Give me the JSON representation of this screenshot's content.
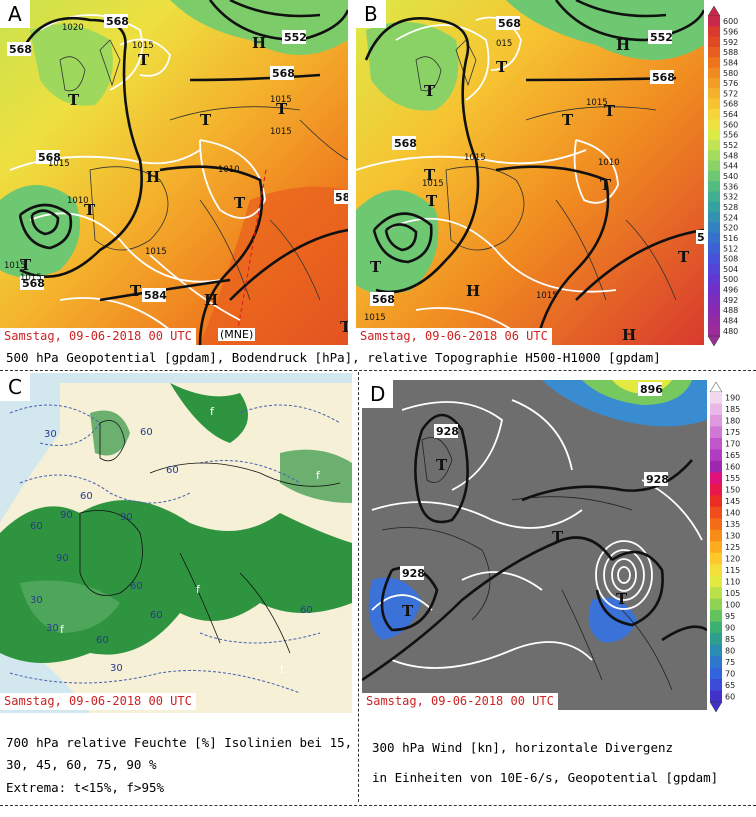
{
  "panels": {
    "A": {
      "letter": "A",
      "timestamp": "Samstag, 09-06-2018   00 UTC",
      "label_mne": "(MNE)",
      "geopotential_labels": [
        "568",
        "568",
        "552",
        "568",
        "568",
        "568",
        "584",
        "58"
      ],
      "pressure_labels": [
        "1020",
        "1015",
        "1015",
        "1015",
        "1010",
        "1015",
        "1010",
        "1015",
        "1015",
        "1015"
      ],
      "systems": [
        "T",
        "T",
        "T",
        "T",
        "T",
        "T",
        "H",
        "H",
        "H",
        "T",
        "T",
        "T"
      ]
    },
    "B": {
      "letter": "B",
      "timestamp": "Samstag, 09-06-2018   06 UTC",
      "geopotential_labels": [
        "568",
        "552",
        "568",
        "568",
        "568",
        "5"
      ],
      "pressure_labels": [
        "015",
        "1015",
        "1015",
        "1015",
        "1010",
        "1015",
        "1015"
      ],
      "systems": [
        "T",
        "H",
        "T",
        "T",
        "T",
        "T",
        "T",
        "T",
        "T",
        "H",
        "T",
        "H"
      ]
    },
    "C": {
      "letter": "C",
      "timestamp": "Samstag, 09-06-2018   00 UTC",
      "humidity_labels": [
        "30",
        "60",
        "60",
        "60",
        "90",
        "90",
        "60",
        "90",
        "60",
        "30",
        "60",
        "30",
        "60",
        "30",
        "60"
      ],
      "extrema_labels": [
        "f",
        "f",
        "f",
        "f",
        "t"
      ]
    },
    "D": {
      "letter": "D",
      "timestamp": "Samstag, 09-06-2018   00 UTC",
      "geopotential_labels": [
        "896",
        "928",
        "928",
        "928"
      ],
      "systems": [
        "T",
        "T",
        "T",
        "T"
      ]
    }
  },
  "captions": {
    "top": "500 hPa Geopotential [gpdam], Bodendruck [hPa], relative Topographie H500-H1000 [gpdam]",
    "c_line1": "700 hPa relative Feuchte [%] Isolinien bei 15,",
    "c_line2": "30, 45, 60, 75, 90 %",
    "c_line3": "Extrema: t<15%, f>95%",
    "d_line1": "300 hPa Wind [kn], horizontale Divergenz",
    "d_line2": "in Einheiten von 10E-6/s, Geopotential [gpdam]"
  },
  "colorbar_top": {
    "labels": [
      "600",
      "596",
      "592",
      "588",
      "584",
      "580",
      "576",
      "572",
      "568",
      "564",
      "560",
      "556",
      "552",
      "548",
      "544",
      "540",
      "536",
      "532",
      "528",
      "524",
      "520",
      "516",
      "512",
      "508",
      "504",
      "500",
      "496",
      "492",
      "488",
      "484",
      "480"
    ],
    "colors": [
      "#c8284a",
      "#d83a2e",
      "#e04a22",
      "#e85e1e",
      "#ee741c",
      "#f08a20",
      "#f29e26",
      "#f4b22c",
      "#f6c432",
      "#f6d43a",
      "#eee040",
      "#dcea48",
      "#c2e454",
      "#a6dc5c",
      "#8ad266",
      "#6ec872",
      "#54bc80",
      "#40b090",
      "#36a2a0",
      "#3292b0",
      "#3282c0",
      "#3672cc",
      "#3c62d4",
      "#4652d8",
      "#5444d8",
      "#6238d2",
      "#7030c8",
      "#7e2cbc",
      "#8a2ab0",
      "#942aa4",
      "#9c2c98"
    ]
  },
  "colorbar_d": {
    "labels": [
      "190",
      "185",
      "180",
      "175",
      "170",
      "165",
      "160",
      "155",
      "150",
      "145",
      "140",
      "135",
      "130",
      "125",
      "120",
      "115",
      "110",
      "105",
      "100",
      "95",
      "90",
      "85",
      "80",
      "75",
      "70",
      "65",
      "60"
    ],
    "colors": [
      "#f2d8ee",
      "#eab8e6",
      "#de98de",
      "#d078d6",
      "#c058cc",
      "#b03cc0",
      "#9c28b0",
      "#e0107c",
      "#e8184c",
      "#ec2c24",
      "#f04c1c",
      "#f46c18",
      "#f88c18",
      "#fcac1c",
      "#fec82a",
      "#f6de3a",
      "#e2ea40",
      "#bce04a",
      "#90d254",
      "#62c25c",
      "#3cb070",
      "#2e9e8e",
      "#2a8cb0",
      "#2e78cc",
      "#3264dc",
      "#3a4cd8",
      "#4232c8"
    ]
  }
}
